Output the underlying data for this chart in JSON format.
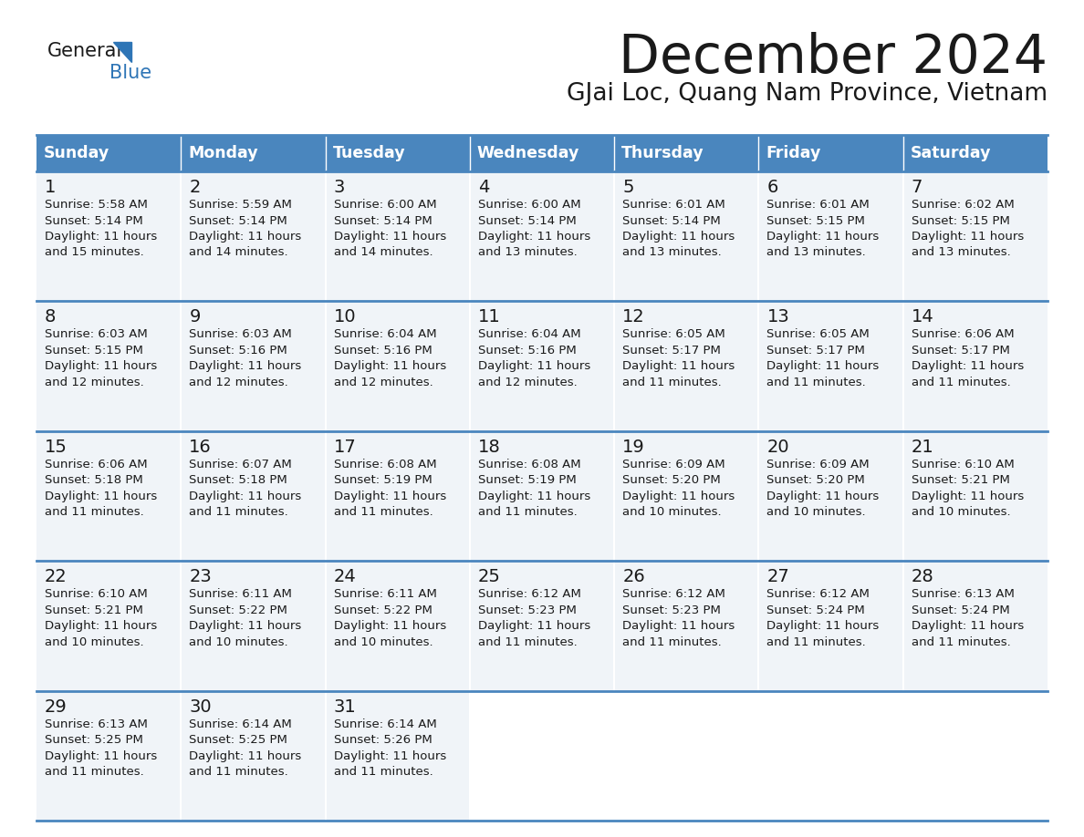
{
  "title": "December 2024",
  "subtitle": "GJai Loc, Quang Nam Province, Vietnam",
  "header_color": "#4a86be",
  "header_text_color": "#FFFFFF",
  "cell_bg_color": "#f0f4f8",
  "empty_cell_bg": "#ffffff",
  "border_color": "#4a86be",
  "text_color": "#1a1a1a",
  "days_of_week": [
    "Sunday",
    "Monday",
    "Tuesday",
    "Wednesday",
    "Thursday",
    "Friday",
    "Saturday"
  ],
  "weeks": [
    [
      {
        "day": 1,
        "sunrise": "5:58 AM",
        "sunset": "5:14 PM",
        "daylight_min": "15"
      },
      {
        "day": 2,
        "sunrise": "5:59 AM",
        "sunset": "5:14 PM",
        "daylight_min": "14"
      },
      {
        "day": 3,
        "sunrise": "6:00 AM",
        "sunset": "5:14 PM",
        "daylight_min": "14"
      },
      {
        "day": 4,
        "sunrise": "6:00 AM",
        "sunset": "5:14 PM",
        "daylight_min": "13"
      },
      {
        "day": 5,
        "sunrise": "6:01 AM",
        "sunset": "5:14 PM",
        "daylight_min": "13"
      },
      {
        "day": 6,
        "sunrise": "6:01 AM",
        "sunset": "5:15 PM",
        "daylight_min": "13"
      },
      {
        "day": 7,
        "sunrise": "6:02 AM",
        "sunset": "5:15 PM",
        "daylight_min": "13"
      }
    ],
    [
      {
        "day": 8,
        "sunrise": "6:03 AM",
        "sunset": "5:15 PM",
        "daylight_min": "12"
      },
      {
        "day": 9,
        "sunrise": "6:03 AM",
        "sunset": "5:16 PM",
        "daylight_min": "12"
      },
      {
        "day": 10,
        "sunrise": "6:04 AM",
        "sunset": "5:16 PM",
        "daylight_min": "12"
      },
      {
        "day": 11,
        "sunrise": "6:04 AM",
        "sunset": "5:16 PM",
        "daylight_min": "12"
      },
      {
        "day": 12,
        "sunrise": "6:05 AM",
        "sunset": "5:17 PM",
        "daylight_min": "11"
      },
      {
        "day": 13,
        "sunrise": "6:05 AM",
        "sunset": "5:17 PM",
        "daylight_min": "11"
      },
      {
        "day": 14,
        "sunrise": "6:06 AM",
        "sunset": "5:17 PM",
        "daylight_min": "11"
      }
    ],
    [
      {
        "day": 15,
        "sunrise": "6:06 AM",
        "sunset": "5:18 PM",
        "daylight_min": "11"
      },
      {
        "day": 16,
        "sunrise": "6:07 AM",
        "sunset": "5:18 PM",
        "daylight_min": "11"
      },
      {
        "day": 17,
        "sunrise": "6:08 AM",
        "sunset": "5:19 PM",
        "daylight_min": "11"
      },
      {
        "day": 18,
        "sunrise": "6:08 AM",
        "sunset": "5:19 PM",
        "daylight_min": "11"
      },
      {
        "day": 19,
        "sunrise": "6:09 AM",
        "sunset": "5:20 PM",
        "daylight_min": "10"
      },
      {
        "day": 20,
        "sunrise": "6:09 AM",
        "sunset": "5:20 PM",
        "daylight_min": "10"
      },
      {
        "day": 21,
        "sunrise": "6:10 AM",
        "sunset": "5:21 PM",
        "daylight_min": "10"
      }
    ],
    [
      {
        "day": 22,
        "sunrise": "6:10 AM",
        "sunset": "5:21 PM",
        "daylight_min": "10"
      },
      {
        "day": 23,
        "sunrise": "6:11 AM",
        "sunset": "5:22 PM",
        "daylight_min": "10"
      },
      {
        "day": 24,
        "sunrise": "6:11 AM",
        "sunset": "5:22 PM",
        "daylight_min": "10"
      },
      {
        "day": 25,
        "sunrise": "6:12 AM",
        "sunset": "5:23 PM",
        "daylight_min": "11"
      },
      {
        "day": 26,
        "sunrise": "6:12 AM",
        "sunset": "5:23 PM",
        "daylight_min": "11"
      },
      {
        "day": 27,
        "sunrise": "6:12 AM",
        "sunset": "5:24 PM",
        "daylight_min": "11"
      },
      {
        "day": 28,
        "sunrise": "6:13 AM",
        "sunset": "5:24 PM",
        "daylight_min": "11"
      }
    ],
    [
      {
        "day": 29,
        "sunrise": "6:13 AM",
        "sunset": "5:25 PM",
        "daylight_min": "11"
      },
      {
        "day": 30,
        "sunrise": "6:14 AM",
        "sunset": "5:25 PM",
        "daylight_min": "11"
      },
      {
        "day": 31,
        "sunrise": "6:14 AM",
        "sunset": "5:26 PM",
        "daylight_min": "11"
      },
      null,
      null,
      null,
      null
    ]
  ]
}
